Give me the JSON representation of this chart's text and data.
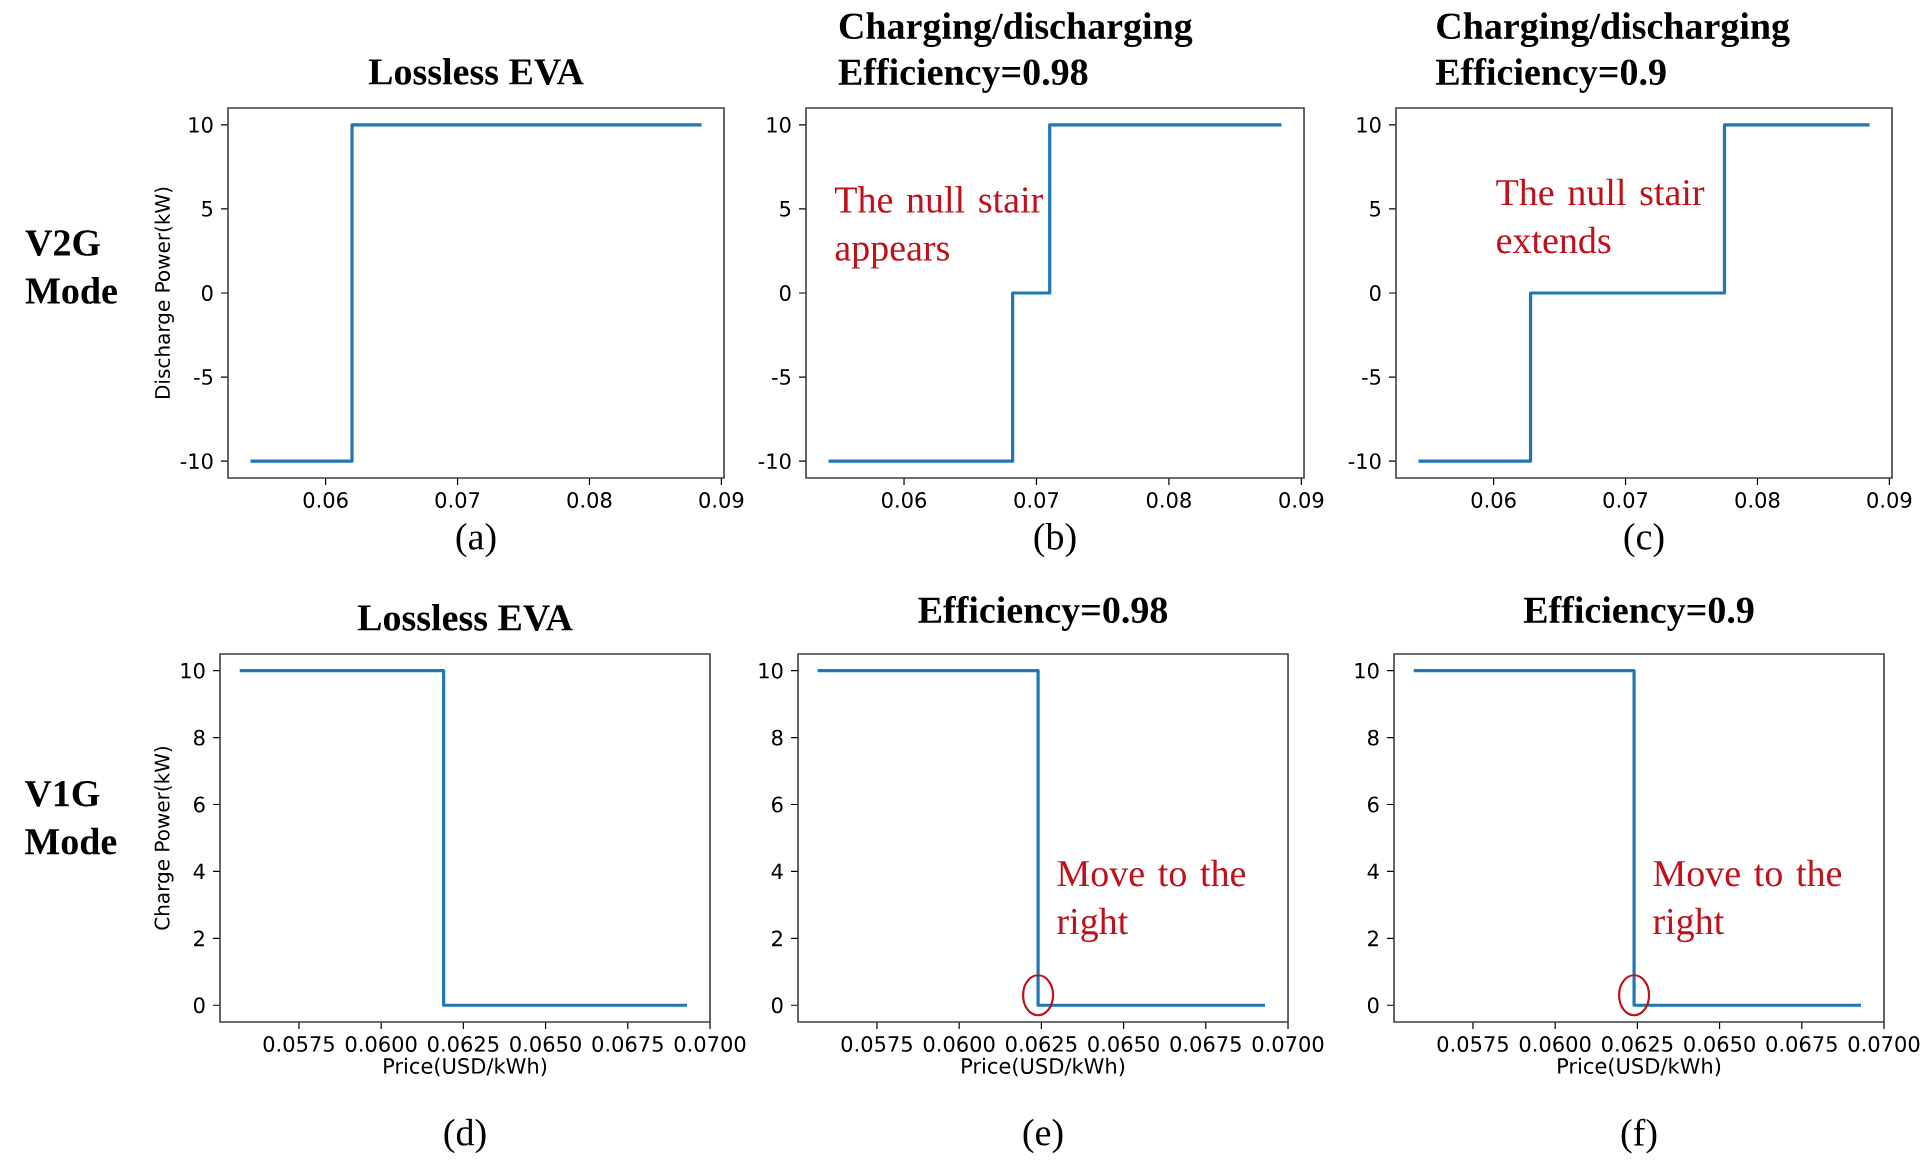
{
  "chart_data": [
    {
      "type": "step",
      "title": "Lossless EVA",
      "ylabel": "Discharge Power(kW)",
      "x": [
        0.0543,
        0.062,
        0.0885
      ],
      "values": [
        -10,
        10,
        10
      ],
      "color": "#1f77b4",
      "xlim": [
        0.0526,
        0.0902
      ],
      "ylim": [
        -11,
        11
      ],
      "xticks": [
        0.06,
        0.07,
        0.08,
        0.09
      ],
      "yticks": [
        -10,
        -5,
        0,
        5,
        10
      ],
      "annotations": [
        "(a)",
        "V2G Mode"
      ]
    },
    {
      "type": "step",
      "title": "Charging/discharging Efficiency=0.98",
      "x": [
        0.0543,
        0.0682,
        0.071,
        0.0885
      ],
      "values": [
        -10,
        0,
        10,
        10
      ],
      "color": "#1f77b4",
      "xlim": [
        0.0526,
        0.0902
      ],
      "ylim": [
        -11,
        11
      ],
      "xticks": [
        0.06,
        0.07,
        0.08,
        0.09
      ],
      "yticks": [
        -10,
        -5,
        0,
        5,
        10
      ],
      "annotations": [
        "(b)",
        "The null stair appears"
      ]
    },
    {
      "type": "step",
      "title": "Charging/discharging Efficiency=0.9",
      "x": [
        0.0543,
        0.0628,
        0.0775,
        0.0885
      ],
      "values": [
        -10,
        0,
        10,
        10
      ],
      "color": "#1f77b4",
      "xlim": [
        0.0526,
        0.0902
      ],
      "ylim": [
        -11,
        11
      ],
      "xticks": [
        0.06,
        0.07,
        0.08,
        0.09
      ],
      "yticks": [
        -10,
        -5,
        0,
        5,
        10
      ],
      "annotations": [
        "(c)",
        "The null stair extends"
      ]
    },
    {
      "type": "step",
      "title": "Lossless EVA",
      "xlabel": "Price(USD/kWh)",
      "ylabel": "Charge Power(kW)",
      "x": [
        0.0557,
        0.0619,
        0.0693
      ],
      "values": [
        10,
        0,
        0
      ],
      "color": "#1f77b4",
      "xlim": [
        0.0551,
        0.07
      ],
      "ylim": [
        -0.5,
        10.5
      ],
      "xticks": [
        0.0575,
        {
          "value": 0.06,
          "label": "0.0600"
        },
        0.0625,
        {
          "value": 0.065,
          "label": "0.0650"
        },
        0.0675,
        {
          "value": 0.07,
          "label": "0.0700"
        }
      ],
      "yticks": [
        0,
        2,
        4,
        6,
        8,
        10
      ],
      "annotations": [
        "(d)",
        "V1G Mode"
      ]
    },
    {
      "type": "step",
      "title": "Efficiency=0.98",
      "xlabel": "Price(USD/kWh)",
      "x": [
        0.0557,
        0.0624,
        0.0693
      ],
      "values": [
        10,
        0,
        0
      ],
      "color": "#1f77b4",
      "xlim": [
        0.0551,
        0.07
      ],
      "ylim": [
        -0.5,
        10.5
      ],
      "xticks": [
        0.0575,
        {
          "value": 0.06,
          "label": "0.0600"
        },
        0.0625,
        {
          "value": 0.065,
          "label": "0.0650"
        },
        0.0675,
        {
          "value": 0.07,
          "label": "0.0700"
        }
      ],
      "yticks": [
        0,
        2,
        4,
        6,
        8,
        10
      ],
      "annotations": [
        "(e)",
        {
          "text": "Move to the right",
          "x": 0.0624,
          "y": 0
        }
      ]
    },
    {
      "type": "step",
      "title": "Efficiency=0.9",
      "xlabel": "Price(USD/kWh)",
      "x": [
        0.0557,
        0.0624,
        0.0693
      ],
      "values": [
        10,
        0,
        0
      ],
      "color": "#1f77b4",
      "xlim": [
        0.0551,
        0.07
      ],
      "ylim": [
        -0.5,
        10.5
      ],
      "xticks": [
        0.0575,
        {
          "value": 0.06,
          "label": "0.0600"
        },
        0.0625,
        {
          "value": 0.065,
          "label": "0.0650"
        },
        0.0675,
        {
          "value": 0.07,
          "label": "0.0700"
        }
      ],
      "yticks": [
        0,
        2,
        4,
        6,
        8,
        10
      ],
      "annotations": [
        "(f)",
        {
          "text": "Move to the right",
          "x": 0.0624,
          "y": 0
        }
      ]
    }
  ]
}
